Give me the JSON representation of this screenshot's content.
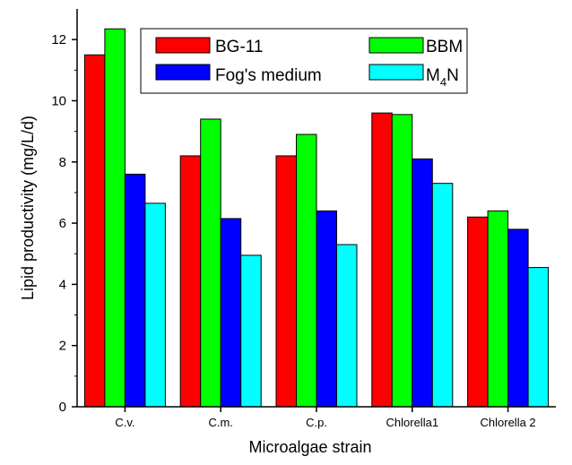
{
  "chart_data": {
    "type": "bar",
    "xlabel": "Microalgae strain",
    "ylabel": "Lipid productivity (mg/L/d)",
    "categories": [
      "C.v.",
      "C.m.",
      "C.p.",
      "Chlorella1",
      "Chlorella 2"
    ],
    "ylim": [
      0,
      13
    ],
    "yticks": [
      0,
      2,
      4,
      6,
      8,
      10,
      12
    ],
    "grid": false,
    "legend_position": "top",
    "series": [
      {
        "name": "BG-11",
        "color": "#ff0000",
        "values": [
          11.5,
          8.2,
          8.2,
          9.6,
          6.2
        ]
      },
      {
        "name": "BBM",
        "color": "#00ff00",
        "values": [
          12.35,
          9.4,
          8.9,
          9.55,
          6.4
        ]
      },
      {
        "name": "Fog's medium",
        "color": "#0000ff",
        "values": [
          7.6,
          6.15,
          6.4,
          8.1,
          5.8
        ]
      },
      {
        "name": "M4N",
        "name_main": "M",
        "name_sub": "4",
        "name_tail": "N",
        "color": "#00ffff",
        "values": [
          6.65,
          4.95,
          5.3,
          7.3,
          4.55
        ]
      }
    ]
  }
}
